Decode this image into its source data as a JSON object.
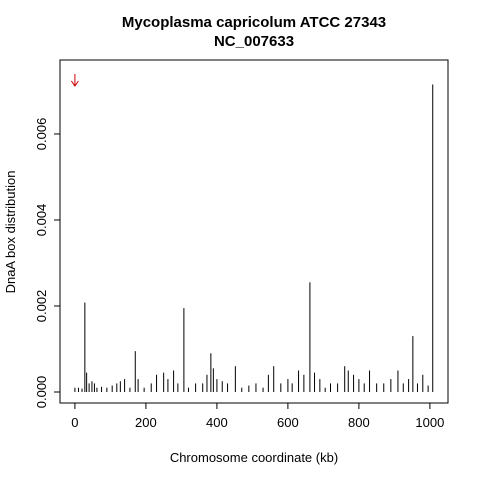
{
  "chart_data": {
    "type": "spike",
    "title": "Mycoplasma capricolum ATCC 27343",
    "subtitle": "NC_007633",
    "x_label": "Chromosome coordinate (kb)",
    "y_label": "DnaA box distribution",
    "color": "#000000",
    "annotations": [
      {
        "type": "arrow",
        "x": 0,
        "color": "#cc0000"
      }
    ],
    "xlim": [
      -42,
      1051
    ],
    "ylim": [
      -0.000256,
      0.00772
    ],
    "xticks": [
      0,
      200,
      400,
      600,
      800,
      1000
    ],
    "yticks": [
      {
        "value": 0,
        "label": "0.000"
      },
      {
        "value": 0.002,
        "label": "0.002"
      },
      {
        "value": 0.004,
        "label": "0.004"
      },
      {
        "value": 0.006,
        "label": "0.006"
      }
    ],
    "x": [
      0,
      10,
      20,
      28,
      33,
      40,
      48,
      55,
      62,
      75,
      90,
      105,
      118,
      128,
      140,
      155,
      170,
      178,
      195,
      215,
      230,
      250,
      262,
      278,
      290,
      307,
      320,
      340,
      360,
      372,
      383,
      390,
      400,
      415,
      430,
      452,
      470,
      490,
      510,
      530,
      545,
      560,
      580,
      600,
      612,
      630,
      645,
      662,
      675,
      690,
      705,
      720,
      740,
      760,
      770,
      785,
      800,
      815,
      830,
      850,
      870,
      890,
      910,
      925,
      940,
      952,
      965,
      980,
      995,
      1008
    ],
    "values": [
      0.0001,
      0.0001,
      8e-05,
      0.00208,
      0.00045,
      0.0002,
      0.00025,
      0.0002,
      0.0001,
      0.00012,
      0.0001,
      0.00015,
      0.0002,
      0.00025,
      0.0003,
      0.0001,
      0.00095,
      0.0003,
      0.0001,
      0.0002,
      0.0004,
      0.00045,
      0.0003,
      0.0005,
      0.0002,
      0.00195,
      0.0001,
      0.0002,
      0.0002,
      0.0004,
      0.0009,
      0.00055,
      0.0003,
      0.00025,
      0.0002,
      0.0006,
      0.0001,
      0.00015,
      0.0002,
      0.0001,
      0.0004,
      0.0006,
      0.0002,
      0.0003,
      0.0002,
      0.0005,
      0.0004,
      0.00255,
      0.00045,
      0.0003,
      0.0001,
      0.0002,
      0.0002,
      0.0006,
      0.0005,
      0.0004,
      0.0003,
      0.0002,
      0.0005,
      0.0002,
      0.0002,
      0.0003,
      0.0005,
      0.0002,
      0.0003,
      0.0013,
      0.0002,
      0.0004,
      0.00015,
      0.00715
    ]
  }
}
